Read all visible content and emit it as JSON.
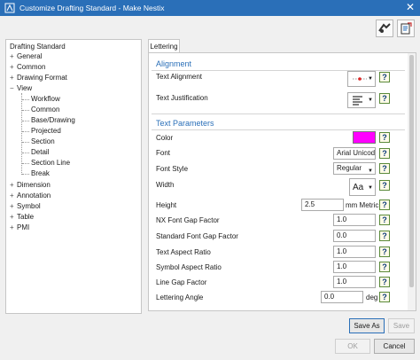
{
  "window": {
    "title": "Customize Drafting Standard - Make Nestix",
    "colors": {
      "titlebar": "#2a6fb8",
      "accent": "#2a6fb8",
      "swatch": "#ff00ff"
    }
  },
  "tree": {
    "header": "Drafting Standard",
    "items": [
      {
        "label": "General",
        "expander": "+"
      },
      {
        "label": "Common",
        "expander": "+"
      },
      {
        "label": "Drawing Format",
        "expander": "+"
      },
      {
        "label": "View",
        "expander": "−"
      },
      {
        "label": "Workflow",
        "expander": ""
      },
      {
        "label": "Common",
        "expander": ""
      },
      {
        "label": "Base/Drawing",
        "expander": ""
      },
      {
        "label": "Projected",
        "expander": ""
      },
      {
        "label": "Section",
        "expander": ""
      },
      {
        "label": "Detail",
        "expander": ""
      },
      {
        "label": "Section Line",
        "expander": ""
      },
      {
        "label": "Break",
        "expander": ""
      },
      {
        "label": "Dimension",
        "expander": "+"
      },
      {
        "label": "Annotation",
        "expander": "+"
      },
      {
        "label": "Symbol",
        "expander": "+"
      },
      {
        "label": "Table",
        "expander": "+"
      },
      {
        "label": "PMI",
        "expander": "+"
      }
    ]
  },
  "tab": {
    "label": "Lettering"
  },
  "alignment": {
    "section": "Alignment",
    "text_alignment": "Text Alignment",
    "text_justification": "Text Justification"
  },
  "text_params": {
    "section": "Text Parameters",
    "color_label": "Color",
    "font_label": "Font",
    "font_value": "Arial Unicode",
    "font_style_label": "Font Style",
    "font_style_value": "Regular",
    "width_label": "Width",
    "width_value": "Aa",
    "height_label": "Height",
    "height_value": "2.5",
    "height_unit": "mm Metric",
    "nx_gap_label": "NX Font Gap Factor",
    "nx_gap_value": "1.0",
    "std_gap_label": "Standard Font Gap Factor",
    "std_gap_value": "0.0",
    "aspect_label": "Text Aspect Ratio",
    "aspect_value": "1.0",
    "sym_aspect_label": "Symbol Aspect Ratio",
    "sym_aspect_value": "1.0",
    "line_gap_label": "Line Gap Factor",
    "line_gap_value": "1.0",
    "angle_label": "Lettering Angle",
    "angle_value": "0.0",
    "angle_unit": "deg"
  },
  "help_glyph": "?",
  "buttons": {
    "save_as": "Save As",
    "save": "Save",
    "ok": "OK",
    "cancel": "Cancel"
  }
}
